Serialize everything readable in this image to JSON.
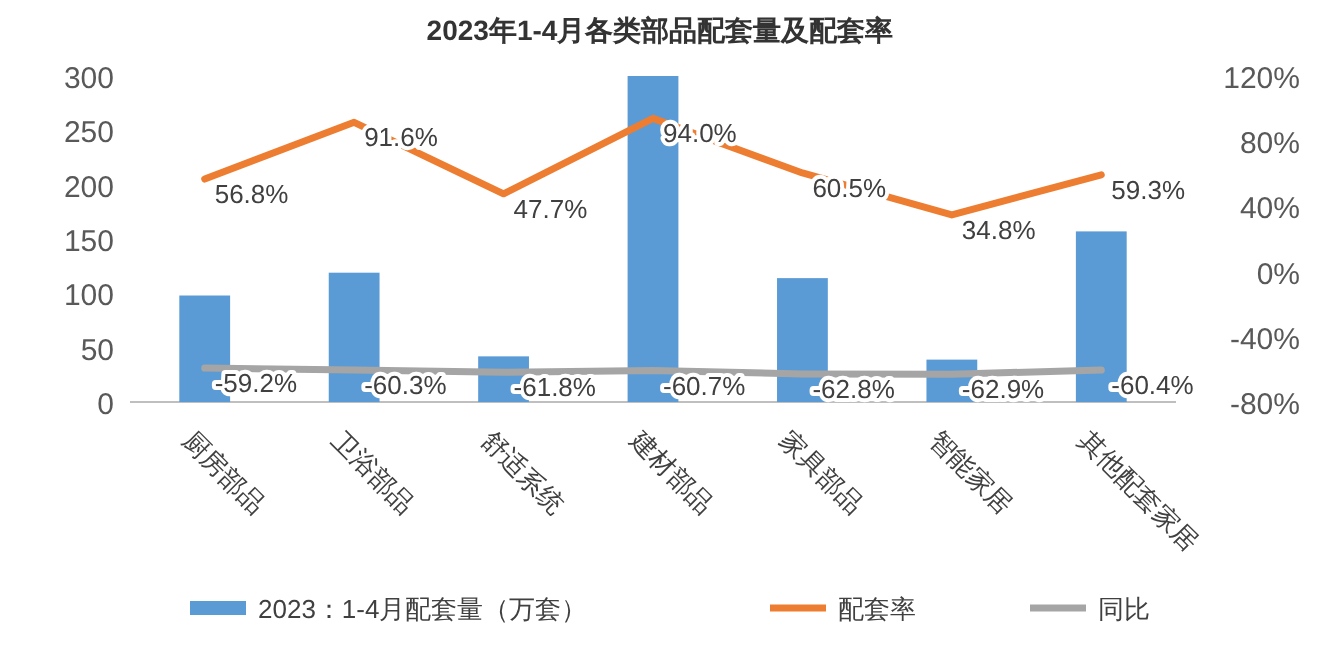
{
  "chart_data": {
    "type": "bar",
    "title": "2023年1-4月各类部品配套量及配套率",
    "categories": [
      "厨房部品",
      "卫浴部品",
      "舒适系统",
      "建材部品",
      "家具部品",
      "智能家居",
      "其他配套家居"
    ],
    "series": [
      {
        "name": "2023：1-4月配套量（万套）",
        "color": "#5b9bd5",
        "values": [
          98,
          119,
          42,
          300,
          114,
          39,
          157
        ]
      },
      {
        "name": "配套率",
        "type": "line",
        "axis": "y2",
        "color": "#ed7d31",
        "values": [
          56.8,
          91.6,
          47.7,
          94.0,
          60.5,
          34.8,
          59.3
        ],
        "value_labels": [
          "56.8%",
          "91.6%",
          "47.7%",
          "94.0%",
          "60.5%",
          "34.8%",
          "59.3%"
        ]
      },
      {
        "name": "同比",
        "type": "line",
        "axis": "y2",
        "color": "#a5a5a5",
        "values": [
          -59.2,
          -60.3,
          -61.8,
          -60.7,
          -62.8,
          -62.9,
          -60.4
        ],
        "value_labels": [
          "-59.2%",
          "-60.3%",
          "-61.8%",
          "-60.7%",
          "-62.8%",
          "-62.9%",
          "-60.4%"
        ]
      }
    ],
    "ylim": [
      0,
      300
    ],
    "yticks": [
      0,
      50,
      100,
      150,
      200,
      250,
      300
    ],
    "y2lim": [
      -80,
      120
    ],
    "y2ticks": [
      {
        "value": -80,
        "label": "-80%"
      },
      {
        "value": -40,
        "label": "-40%"
      },
      {
        "value": 0,
        "label": "0%"
      },
      {
        "value": 40,
        "label": "40%"
      },
      {
        "value": 80,
        "label": "80%"
      },
      {
        "value": 120,
        "label": "120%"
      }
    ],
    "legend": "bottom",
    "grid": false,
    "marker": "none",
    "line_style": "solid"
  }
}
